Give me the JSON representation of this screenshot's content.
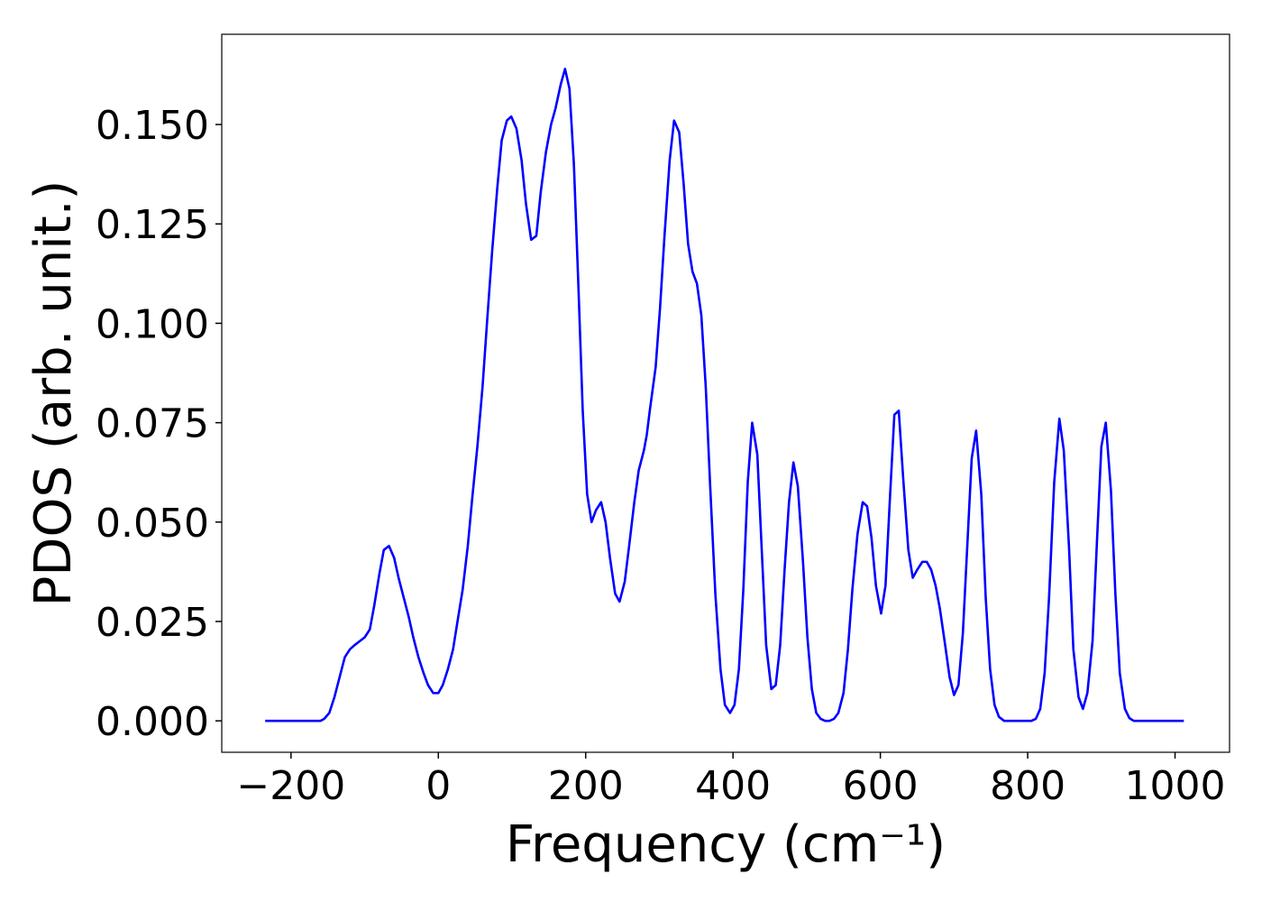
{
  "chart_data": {
    "type": "line",
    "x_label": "Frequency (cm⁻¹)",
    "y_label": "PDOS (arb. unit.)",
    "color": "#0000ff",
    "xlim": [
      -294,
      1074
    ],
    "ylim": [
      -0.0079,
      0.1727
    ],
    "xticks": [
      {
        "value": -200,
        "label": "−200"
      },
      0,
      200,
      400,
      600,
      800,
      1000
    ],
    "yticks": [
      {
        "value": 0,
        "label": "0.000"
      },
      0.025,
      {
        "value": 0.05,
        "label": "0.050"
      },
      0.075,
      {
        "value": 0.1,
        "label": "0.100"
      },
      0.125,
      {
        "value": 0.15,
        "label": "0.150"
      }
    ],
    "x": [
      -235,
      -160,
      -155,
      -148,
      -141,
      -134,
      -127,
      -120,
      -114,
      -107,
      -100,
      -93,
      -87,
      -80,
      -74,
      -67,
      -60,
      -54,
      -47,
      -40,
      -34,
      -27,
      -20,
      -14,
      -7,
      0,
      6,
      13,
      20,
      26,
      33,
      40,
      46,
      53,
      60,
      66,
      73,
      80,
      86,
      93,
      99,
      106,
      113,
      119,
      126,
      133,
      139,
      146,
      153,
      159,
      166,
      172,
      178,
      184,
      190,
      196,
      202,
      208,
      214,
      221,
      227,
      233,
      240,
      246,
      253,
      259,
      266,
      272,
      279,
      283,
      287,
      295,
      301,
      307,
      314,
      320,
      327,
      333,
      339,
      345,
      351,
      357,
      363,
      369,
      376,
      383,
      389,
      396,
      402,
      408,
      414,
      420,
      426,
      433,
      439,
      445,
      452,
      458,
      464,
      470,
      476,
      482,
      488,
      495,
      501,
      507,
      513,
      519,
      525,
      531,
      537,
      543,
      550,
      556,
      562,
      569,
      576,
      582,
      588,
      594,
      601,
      607,
      613,
      619,
      625,
      631,
      638,
      644,
      650,
      657,
      663,
      669,
      675,
      681,
      688,
      694,
      700,
      706,
      712,
      718,
      724,
      730,
      737,
      743,
      749,
      755,
      761,
      768,
      805,
      811,
      817,
      823,
      829,
      836,
      843,
      849,
      856,
      862,
      869,
      875,
      881,
      888,
      894,
      900,
      906,
      913,
      919,
      925,
      932,
      938,
      944,
      1012
    ],
    "values": [
      0,
      0,
      0.0005,
      0.002,
      0.006,
      0.011,
      0.016,
      0.018,
      0.019,
      0.02,
      0.021,
      0.023,
      0.029,
      0.037,
      0.043,
      0.044,
      0.041,
      0.036,
      0.031,
      0.026,
      0.021,
      0.016,
      0.012,
      0.009,
      0.007,
      0.007,
      0.009,
      0.013,
      0.018,
      0.025,
      0.033,
      0.044,
      0.056,
      0.069,
      0.084,
      0.1,
      0.118,
      0.134,
      0.146,
      0.151,
      0.152,
      0.149,
      0.141,
      0.13,
      0.121,
      0.122,
      0.133,
      0.143,
      0.15,
      0.154,
      0.16,
      0.164,
      0.159,
      0.14,
      0.11,
      0.078,
      0.057,
      0.05,
      0.053,
      0.055,
      0.05,
      0.041,
      0.032,
      0.03,
      0.035,
      0.044,
      0.055,
      0.063,
      0.068,
      0.072,
      0.078,
      0.089,
      0.104,
      0.122,
      0.141,
      0.151,
      0.148,
      0.135,
      0.12,
      0.113,
      0.11,
      0.102,
      0.084,
      0.059,
      0.032,
      0.013,
      0.004,
      0.002,
      0.004,
      0.013,
      0.033,
      0.06,
      0.075,
      0.067,
      0.043,
      0.019,
      0.008,
      0.009,
      0.019,
      0.038,
      0.055,
      0.065,
      0.059,
      0.04,
      0.021,
      0.008,
      0.002,
      0.0005,
      0,
      0,
      0.0005,
      0.002,
      0.007,
      0.018,
      0.033,
      0.047,
      0.055,
      0.054,
      0.046,
      0.034,
      0.027,
      0.034,
      0.056,
      0.077,
      0.078,
      0.061,
      0.043,
      0.036,
      0.038,
      0.04,
      0.04,
      0.038,
      0.034,
      0.028,
      0.019,
      0.011,
      0.0065,
      0.009,
      0.022,
      0.044,
      0.066,
      0.073,
      0.057,
      0.031,
      0.013,
      0.004,
      0.001,
      0,
      0,
      0.0005,
      0.003,
      0.012,
      0.031,
      0.06,
      0.076,
      0.068,
      0.044,
      0.018,
      0.006,
      0.003,
      0.007,
      0.02,
      0.045,
      0.069,
      0.075,
      0.058,
      0.032,
      0.012,
      0.003,
      0.0007,
      0,
      0
    ]
  }
}
